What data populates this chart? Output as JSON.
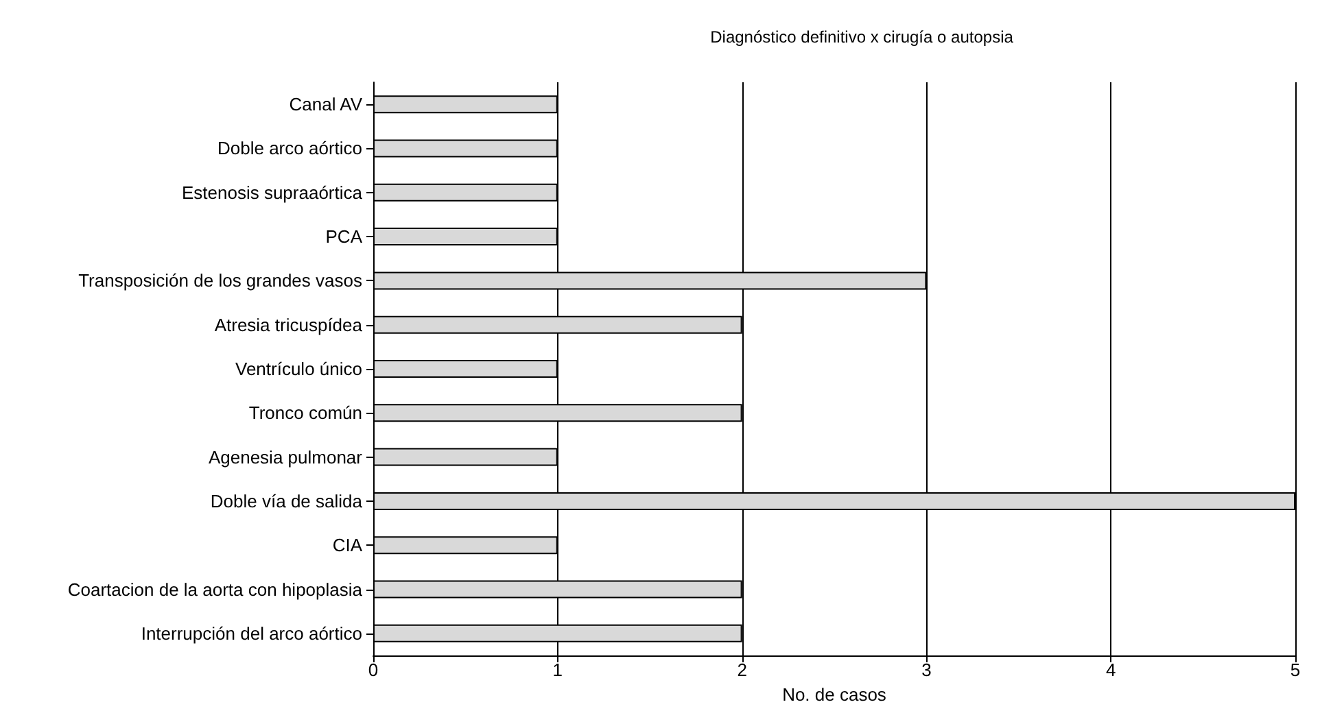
{
  "chart_data": {
    "type": "bar",
    "orientation": "horizontal",
    "title": "Diagnóstico definitivo x cirugía o autopsia",
    "xlabel": "No. de casos",
    "categories": [
      "Canal AV",
      "Doble arco aórtico",
      "Estenosis supraaórtica",
      "PCA",
      "Transposición de los grandes vasos",
      "Atresia tricuspídea",
      "Ventrículo único",
      "Tronco común",
      "Agenesia pulmonar",
      "Doble vía de salida",
      "CIA",
      "Coartacion de la aorta con hipoplasia",
      "Interrupción del arco aórtico"
    ],
    "values": [
      1,
      1,
      1,
      1,
      3,
      2,
      1,
      2,
      1,
      5,
      1,
      2,
      2
    ],
    "color": "#d9d9d9",
    "xlim": [
      0,
      5
    ],
    "xticks": [
      0,
      1,
      2,
      3,
      4,
      5
    ],
    "grid": "x"
  }
}
